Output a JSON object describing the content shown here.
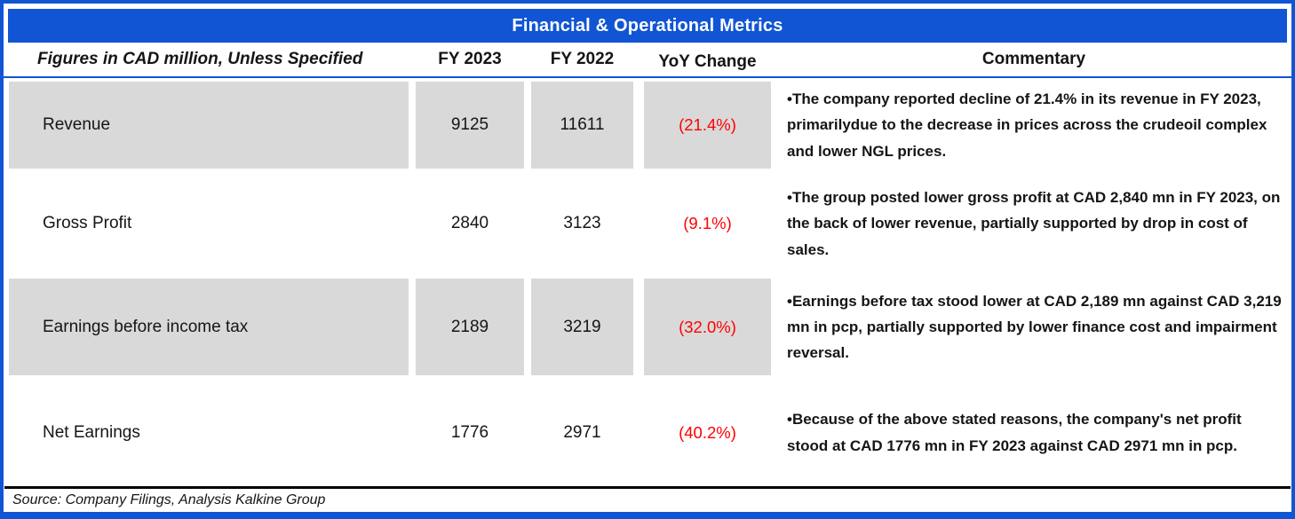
{
  "title": "Financial & Operational Metrics",
  "columns": {
    "label": "Figures in CAD million, Unless Specified",
    "fy2023": "FY 2023",
    "fy2022": "FY 2022",
    "yoy": "YoY Change",
    "commentary": "Commentary"
  },
  "rows": [
    {
      "metric": "Revenue",
      "fy2023": "9125",
      "fy2022": "11611",
      "yoy": "(21.4%)",
      "commentary": "•The company reported decline of 21.4% in its revenue in FY 2023, primarilydue to the decrease in prices across the crudeoil complex and lower NGL prices."
    },
    {
      "metric": "Gross Profit",
      "fy2023": "2840",
      "fy2022": "3123",
      "yoy": "(9.1%)",
      "commentary": "•The group posted lower gross profit at CAD 2,840 mn in FY 2023, on the back of lower revenue, partially supported by drop in cost of sales."
    },
    {
      "metric": "Earnings before income tax",
      "fy2023": "2189",
      "fy2022": "3219",
      "yoy": "(32.0%)",
      "commentary": "•Earnings before tax stood lower at CAD 2,189 mn against CAD 3,219 mn in pcp, partially supported by lower finance cost and impairment reversal."
    },
    {
      "metric": "Net Earnings",
      "fy2023": "1776",
      "fy2022": "2971",
      "yoy": "(40.2%)",
      "commentary": "•Because of the above stated reasons, the company's net profit stood at CAD 1776 mn in FY 2023 against CAD 2971 mn in pcp."
    }
  ],
  "source": "Source: Company Filings, Analysis Kalkine Group",
  "colors": {
    "accent_blue": "#1155d4",
    "shaded_gray": "#d9d9d9",
    "negative_red": "#ff0000"
  }
}
